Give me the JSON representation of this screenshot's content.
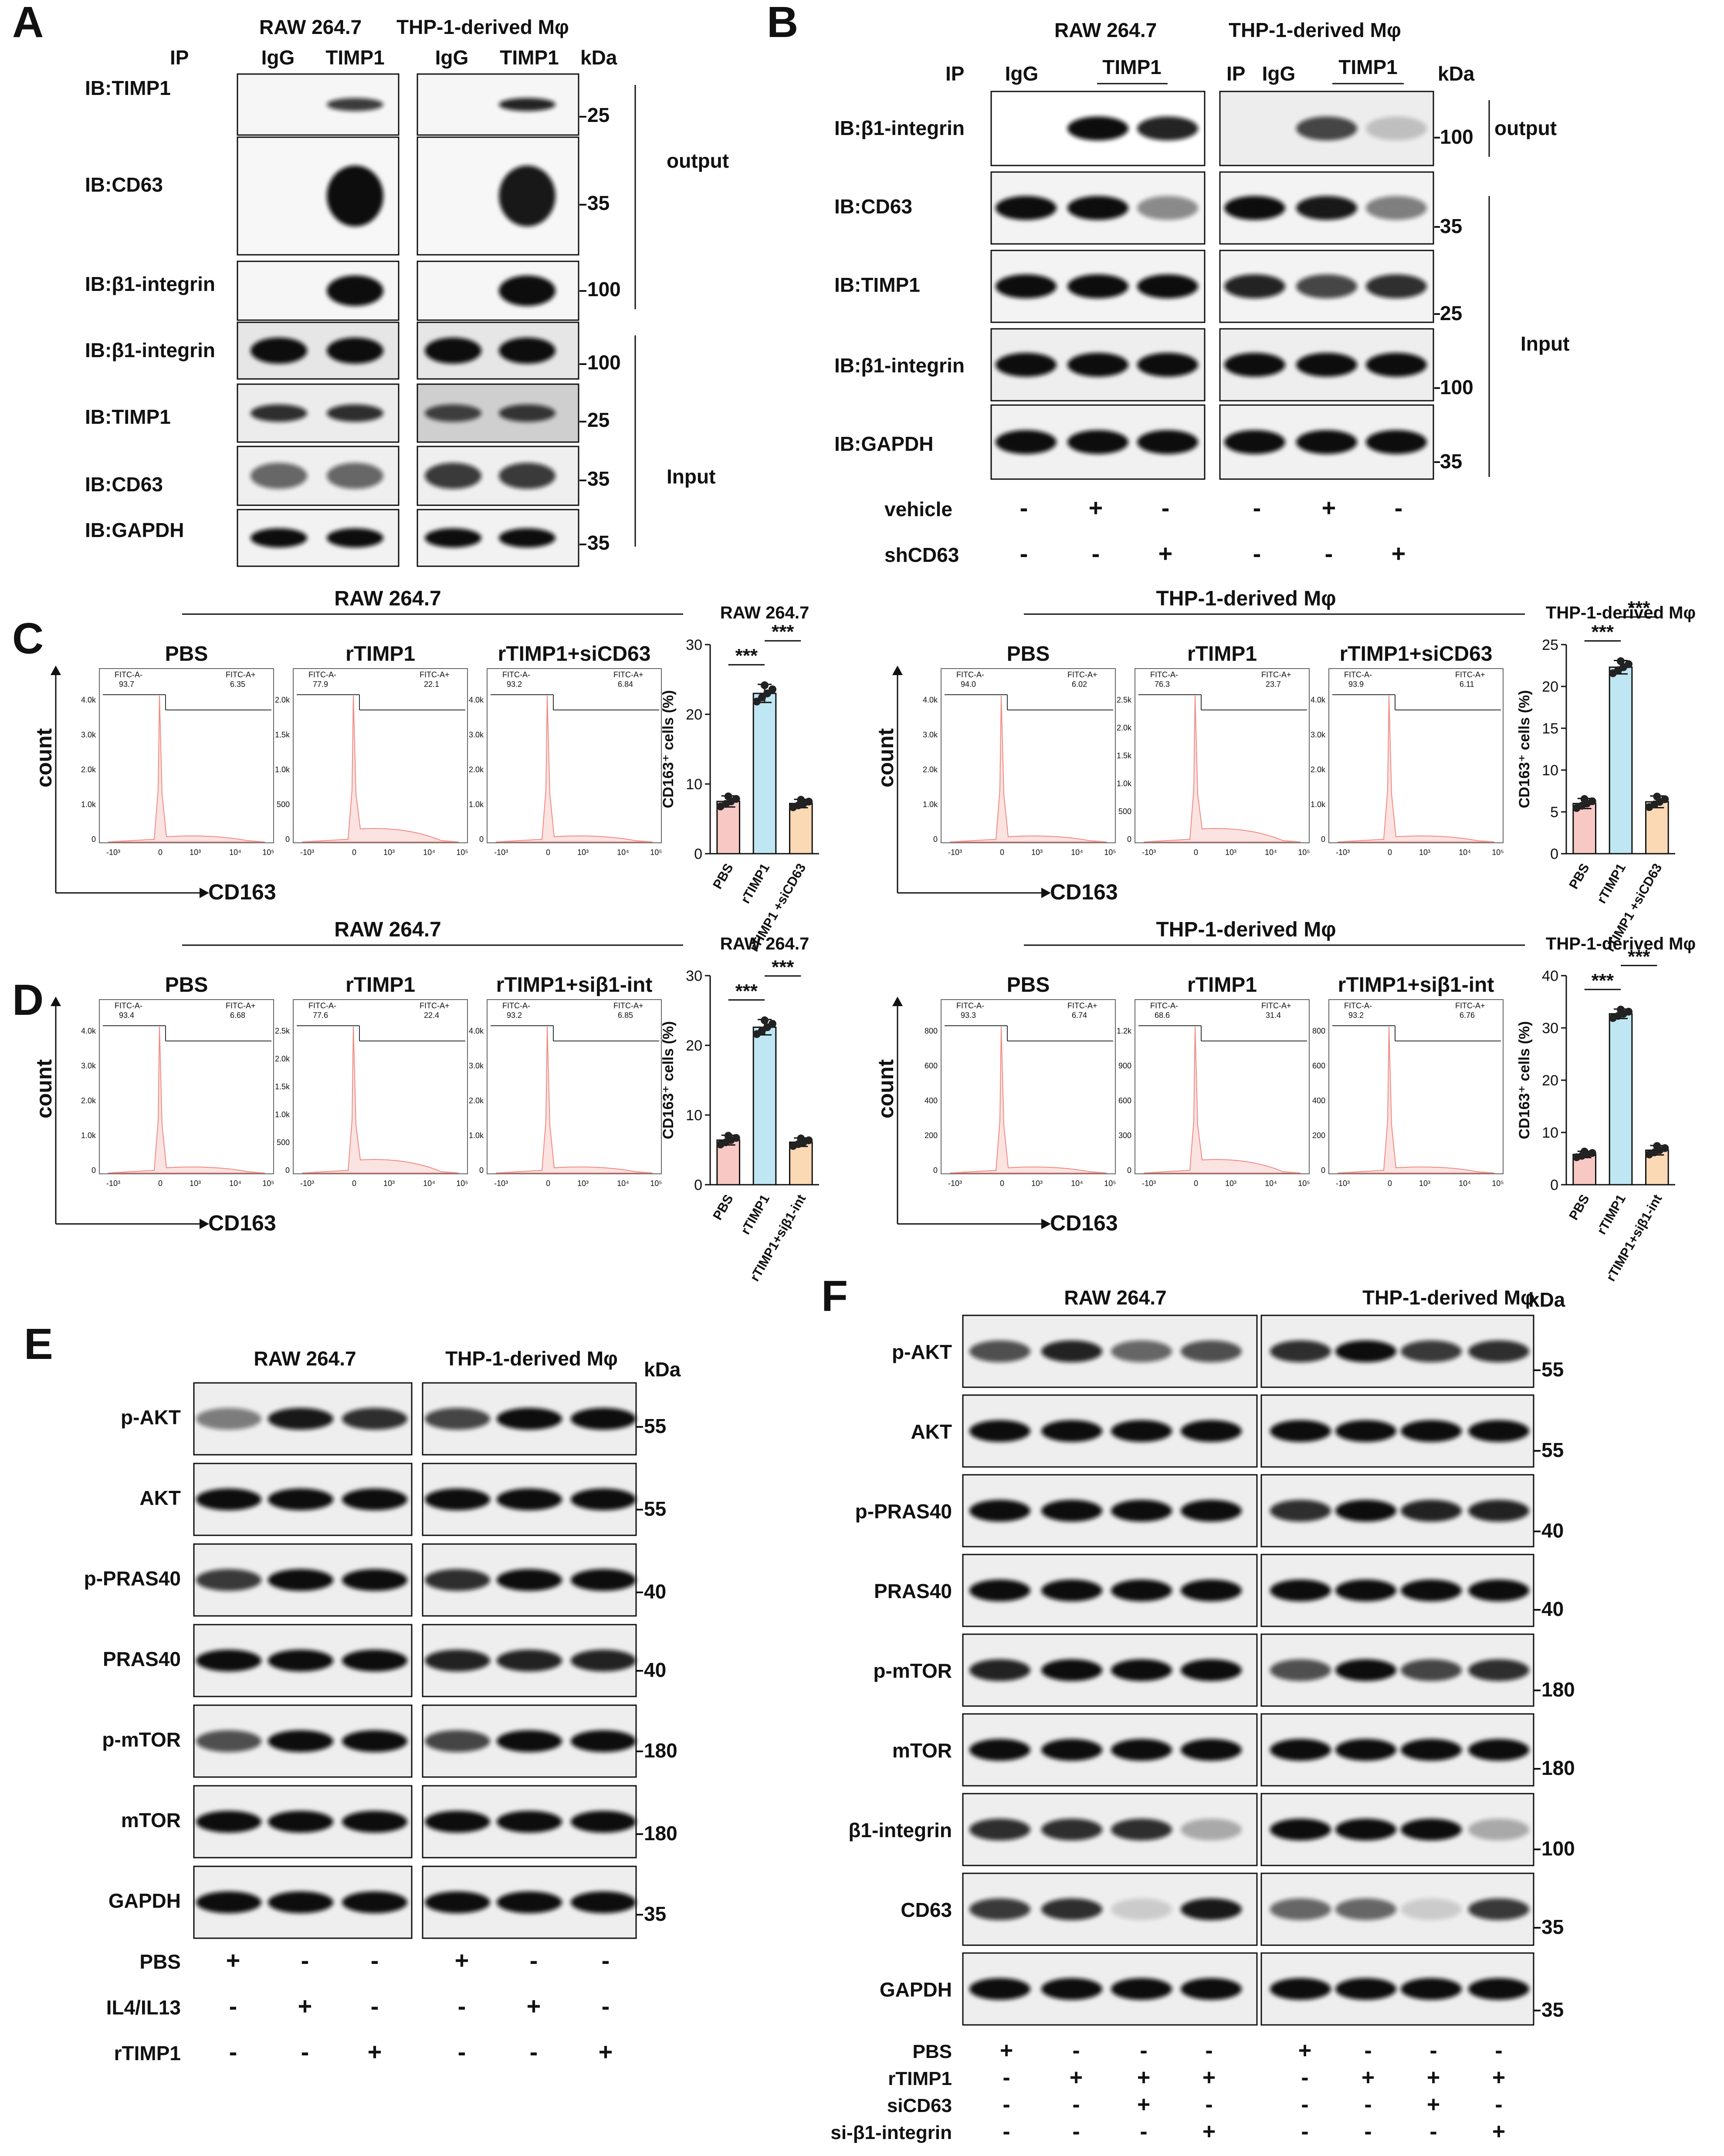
{
  "panelA": {
    "letter": "A",
    "cells": [
      "RAW 264.7",
      "THP-1-derived Mφ"
    ],
    "ip": {
      "label": "IP",
      "lanes": [
        "IgG",
        "TIMP1",
        "IgG",
        "TIMP1"
      ]
    },
    "kda": "kDa",
    "rows": [
      {
        "label": "IB:TIMP1",
        "kda": "25"
      },
      {
        "label": "IB:CD63",
        "kda": "35"
      },
      {
        "label": "IB:β1-integrin",
        "kda": "100"
      },
      {
        "label": "IB:β1-integrin",
        "kda": "100"
      },
      {
        "label": "IB:TIMP1",
        "kda": "25"
      },
      {
        "label": "IB:CD63",
        "kda": "35"
      },
      {
        "label": "IB:GAPDH",
        "kda": "35"
      }
    ],
    "output_label": "output",
    "input_label": "Input"
  },
  "panelB": {
    "letter": "B",
    "cells": [
      "RAW 264.7",
      "THP-1-derived Mφ"
    ],
    "ip_label": "IP",
    "ip_label2": "IP",
    "igg": "IgG",
    "timp1": "TIMP1",
    "kda": "kDa",
    "rows": [
      {
        "label": "IB:β1-integrin",
        "kda": "100"
      },
      {
        "label": "IB:CD63",
        "kda": "35"
      },
      {
        "label": "IB:TIMP1",
        "kda": "25"
      },
      {
        "label": "IB:β1-integrin",
        "kda": "100"
      },
      {
        "label": "IB:GAPDH",
        "kda": "35"
      }
    ],
    "output_label": "output",
    "input_label": "Input",
    "treatments": [
      {
        "label": "vehicle",
        "signs": [
          "-",
          "+",
          "-",
          "-",
          "+",
          "-"
        ]
      },
      {
        "label": "shCD63",
        "signs": [
          "-",
          "-",
          "+",
          "-",
          "-",
          "+"
        ]
      }
    ]
  },
  "panelC": {
    "letter": "C",
    "flow": [
      {
        "cell": "RAW 264.7",
        "xlabel": "CD163",
        "ylabel": "count",
        "histograms": [
          {
            "title": "PBS",
            "neg_label": "FITC-A-",
            "neg": "93.7",
            "pos_label": "FITC-A+",
            "pos": "6.35",
            "yticks": [
              "0",
              "1.0k",
              "2.0k",
              "3.0k",
              "4.0k"
            ]
          },
          {
            "title": "rTIMP1",
            "neg_label": "FITC-A-",
            "neg": "77.9",
            "pos_label": "FITC-A+",
            "pos": "22.1",
            "yticks": [
              "0",
              "500",
              "1.0k",
              "1.5k",
              "2.0k"
            ]
          },
          {
            "title": "rTIMP1+siCD63",
            "neg_label": "FITC-A-",
            "neg": "93.2",
            "pos_label": "FITC-A+",
            "pos": "6.84",
            "yticks": [
              "0",
              "1.0k",
              "2.0k",
              "3.0k",
              "4.0k"
            ]
          }
        ]
      },
      {
        "cell": "THP-1-derived Mφ",
        "xlabel": "CD163",
        "ylabel": "count",
        "histograms": [
          {
            "title": "PBS",
            "neg_label": "FITC-A-",
            "neg": "94.0",
            "pos_label": "FITC-A+",
            "pos": "6.02",
            "yticks": [
              "0",
              "1.0k",
              "2.0k",
              "3.0k",
              "4.0k"
            ]
          },
          {
            "title": "rTIMP1",
            "neg_label": "FITC-A-",
            "neg": "76.3",
            "pos_label": "FITC-A+",
            "pos": "23.7",
            "yticks": [
              "0",
              "500",
              "1.0k",
              "1.5k",
              "2.0k",
              "2.5k"
            ]
          },
          {
            "title": "rTIMP1+siCD63",
            "neg_label": "FITC-A-",
            "neg": "93.9",
            "pos_label": "FITC-A+",
            "pos": "6.11",
            "yticks": [
              "0",
              "1.0k",
              "2.0k",
              "3.0k",
              "4.0k"
            ]
          }
        ]
      }
    ],
    "xticks": [
      "-10³",
      "0",
      "10³",
      "10⁴",
      "10⁵"
    ]
  },
  "panelD": {
    "letter": "D",
    "flow": [
      {
        "cell": "RAW 264.7",
        "xlabel": "CD163",
        "ylabel": "count",
        "histograms": [
          {
            "title": "PBS",
            "neg_label": "FITC-A-",
            "neg": "93.4",
            "pos_label": "FITC-A+",
            "pos": "6.68",
            "yticks": [
              "0",
              "1.0k",
              "2.0k",
              "3.0k",
              "4.0k"
            ]
          },
          {
            "title": "rTIMP1",
            "neg_label": "FITC-A-",
            "neg": "77.6",
            "pos_label": "FITC-A+",
            "pos": "22.4",
            "yticks": [
              "0",
              "500",
              "1.0k",
              "1.5k",
              "2.0k",
              "2.5k"
            ]
          },
          {
            "title": "rTIMP1+siβ1-int",
            "neg_label": "FITC-A-",
            "neg": "93.2",
            "pos_label": "FITC-A+",
            "pos": "6.85",
            "yticks": [
              "0",
              "1.0k",
              "2.0k",
              "3.0k",
              "4.0k"
            ]
          }
        ]
      },
      {
        "cell": "THP-1-derived Mφ",
        "xlabel": "CD163",
        "ylabel": "count",
        "histograms": [
          {
            "title": "PBS",
            "neg_label": "FITC-A-",
            "neg": "93.3",
            "pos_label": "FITC-A+",
            "pos": "6.74",
            "yticks": [
              "0",
              "200",
              "400",
              "600",
              "800"
            ]
          },
          {
            "title": "rTIMP1",
            "neg_label": "FITC-A-",
            "neg": "68.6",
            "pos_label": "FITC-A+",
            "pos": "31.4",
            "yticks": [
              "0",
              "300",
              "600",
              "900",
              "1.2k"
            ]
          },
          {
            "title": "rTIMP1+siβ1-int",
            "neg_label": "FITC-A-",
            "neg": "93.2",
            "pos_label": "FITC-A+",
            "pos": "6.76",
            "yticks": [
              "0",
              "200",
              "400",
              "600",
              "800"
            ]
          }
        ]
      }
    ],
    "xticks": [
      "-10³",
      "0",
      "10³",
      "10⁴",
      "10⁵"
    ]
  },
  "chart_data": [
    {
      "panel": "C",
      "type": "bar",
      "title": "RAW 264.7",
      "ylabel": "CD163⁺ cells (%)",
      "categories": [
        "PBS",
        "rTIMP1",
        "rTIMP1 +siCD63"
      ],
      "values": [
        7.5,
        23.0,
        7.2
      ],
      "errors": [
        0.8,
        1.3,
        0.6
      ],
      "ylim": [
        0,
        30
      ],
      "yticks": [
        0,
        10,
        20,
        30
      ],
      "colors": [
        "#f8c9c4",
        "#bfe6f3",
        "#fcd9b5"
      ],
      "sig": [
        "***",
        "***"
      ]
    },
    {
      "panel": "C",
      "type": "bar",
      "title": "THP-1-derived Mφ",
      "ylabel": "CD163⁺ cells (%)",
      "categories": [
        "PBS",
        "rTIMP1",
        "rTIMP1 +siCD63"
      ],
      "values": [
        6.0,
        22.3,
        6.2
      ],
      "errors": [
        0.6,
        0.8,
        0.7
      ],
      "ylim": [
        0,
        25
      ],
      "yticks": [
        0,
        5,
        10,
        15,
        20,
        25
      ],
      "colors": [
        "#f8c9c4",
        "#bfe6f3",
        "#fcd9b5"
      ],
      "sig": [
        "***",
        "***"
      ]
    },
    {
      "panel": "D",
      "type": "bar",
      "title": "RAW 264.7",
      "ylabel": "CD163⁺ cells (%)",
      "categories": [
        "PBS",
        "rTIMP1",
        "rTIMP1+siβ1-int"
      ],
      "values": [
        6.4,
        22.6,
        6.1
      ],
      "errors": [
        0.7,
        1.1,
        0.6
      ],
      "ylim": [
        0,
        30
      ],
      "yticks": [
        0,
        10,
        20,
        30
      ],
      "colors": [
        "#f8c9c4",
        "#bfe6f3",
        "#fcd9b5"
      ],
      "sig": [
        "***",
        "***"
      ]
    },
    {
      "panel": "D",
      "type": "bar",
      "title": "THP-1-derived Mφ",
      "ylabel": "CD163⁺ cells (%)",
      "categories": [
        "PBS",
        "rTIMP1",
        "rTIMP1+siβ1-int"
      ],
      "values": [
        5.8,
        32.7,
        6.6
      ],
      "errors": [
        0.6,
        0.9,
        0.9
      ],
      "ylim": [
        0,
        40
      ],
      "yticks": [
        0,
        10,
        20,
        30,
        40
      ],
      "colors": [
        "#f8c9c4",
        "#bfe6f3",
        "#fcd9b5"
      ],
      "sig": [
        "***",
        "***"
      ]
    }
  ],
  "panelE": {
    "letter": "E",
    "cells": [
      "RAW 264.7",
      "THP-1-derived Mφ"
    ],
    "kda": "kDa",
    "rows": [
      {
        "label": "p-AKT",
        "kda": "55"
      },
      {
        "label": "AKT",
        "kda": "55"
      },
      {
        "label": "p-PRAS40",
        "kda": "40"
      },
      {
        "label": "PRAS40",
        "kda": "40"
      },
      {
        "label": "p-mTOR",
        "kda": "180"
      },
      {
        "label": "mTOR",
        "kda": "180"
      },
      {
        "label": "GAPDH",
        "kda": "35"
      }
    ],
    "treatments": [
      {
        "label": "PBS",
        "signs": [
          "+",
          "-",
          "-",
          "+",
          "-",
          "-"
        ]
      },
      {
        "label": "IL4/IL13",
        "signs": [
          "-",
          "+",
          "-",
          "-",
          "+",
          "-"
        ]
      },
      {
        "label": "rTIMP1",
        "signs": [
          "-",
          "-",
          "+",
          "-",
          "-",
          "+"
        ]
      }
    ]
  },
  "panelF": {
    "letter": "F",
    "cells": [
      "RAW 264.7",
      "THP-1-derived Mφ"
    ],
    "kda": "kDa",
    "rows": [
      {
        "label": "p-AKT",
        "kda": "55"
      },
      {
        "label": "AKT",
        "kda": "55"
      },
      {
        "label": "p-PRAS40",
        "kda": "40"
      },
      {
        "label": "PRAS40",
        "kda": "40"
      },
      {
        "label": "p-mTOR",
        "kda": "180"
      },
      {
        "label": "mTOR",
        "kda": "180"
      },
      {
        "label": "β1-integrin",
        "kda": "100"
      },
      {
        "label": "CD63",
        "kda": "35"
      },
      {
        "label": "GAPDH",
        "kda": "35"
      }
    ],
    "treatments": [
      {
        "label": "PBS",
        "signs": [
          "+",
          "-",
          "-",
          "-",
          "+",
          "-",
          "-",
          "-"
        ]
      },
      {
        "label": "rTIMP1",
        "signs": [
          "-",
          "+",
          "+",
          "+",
          "-",
          "+",
          "+",
          "+"
        ]
      },
      {
        "label": "siCD63",
        "signs": [
          "-",
          "-",
          "+",
          "-",
          "-",
          "-",
          "+",
          "-"
        ]
      },
      {
        "label": "si-β1-integrin",
        "signs": [
          "-",
          "-",
          "-",
          "+",
          "-",
          "-",
          "-",
          "+"
        ]
      }
    ]
  }
}
